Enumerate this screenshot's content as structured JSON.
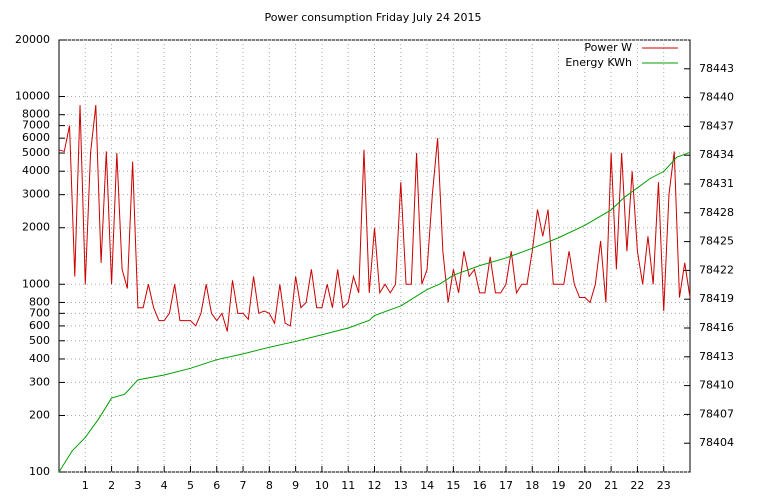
{
  "chart_data": {
    "type": "line",
    "title": "Power consumption Friday July 24 2015",
    "xlim": [
      0,
      24
    ],
    "xticks": [
      1,
      2,
      3,
      4,
      5,
      6,
      7,
      8,
      9,
      10,
      11,
      12,
      13,
      14,
      15,
      16,
      17,
      18,
      19,
      20,
      21,
      22,
      23
    ],
    "ylim": [
      100,
      20000
    ],
    "log_y": true,
    "yticks": [
      100,
      200,
      300,
      400,
      500,
      600,
      700,
      800,
      1000,
      2000,
      3000,
      4000,
      5000,
      6000,
      7000,
      8000,
      10000,
      20000
    ],
    "y2lim": [
      78401,
      78446
    ],
    "y2ticks": [
      78404,
      78407,
      78410,
      78413,
      78416,
      78419,
      78422,
      78425,
      78428,
      78431,
      78434,
      78437,
      78440,
      78443
    ],
    "grid": true,
    "legend": "top-right",
    "series": [
      {
        "name": "Power W",
        "color": "#cc0000",
        "x": [
          0,
          0.2,
          0.4,
          0.6,
          0.8,
          1,
          1.2,
          1.4,
          1.6,
          1.8,
          2,
          2.2,
          2.4,
          2.6,
          2.8,
          3,
          3.2,
          3.4,
          3.6,
          3.8,
          4,
          4.2,
          4.4,
          4.6,
          4.8,
          5,
          5.2,
          5.4,
          5.6,
          5.8,
          6,
          6.2,
          6.4,
          6.6,
          6.8,
          7,
          7.2,
          7.4,
          7.6,
          7.8,
          8,
          8.2,
          8.4,
          8.6,
          8.8,
          9,
          9.2,
          9.4,
          9.6,
          9.8,
          10,
          10.2,
          10.4,
          10.6,
          10.8,
          11,
          11.2,
          11.4,
          11.6,
          11.8,
          12,
          12.2,
          12.4,
          12.6,
          12.8,
          13,
          13.2,
          13.4,
          13.6,
          13.8,
          14,
          14.2,
          14.4,
          14.6,
          14.8,
          15,
          15.2,
          15.4,
          15.6,
          15.8,
          16,
          16.2,
          16.4,
          16.6,
          16.8,
          17,
          17.2,
          17.4,
          17.6,
          17.8,
          18,
          18.2,
          18.4,
          18.6,
          18.8,
          19,
          19.2,
          19.4,
          19.6,
          19.8,
          20,
          20.2,
          20.4,
          20.6,
          20.8,
          21,
          21.2,
          21.4,
          21.6,
          21.8,
          22,
          22.2,
          22.4,
          22.6,
          22.8,
          23,
          23.2,
          23.4,
          23.6,
          23.8,
          24
        ],
        "values": [
          5200,
          5100,
          7000,
          1100,
          9000,
          1000,
          5000,
          9000,
          1300,
          5100,
          1000,
          5000,
          1200,
          950,
          4500,
          750,
          750,
          1000,
          750,
          640,
          640,
          700,
          1000,
          640,
          640,
          640,
          600,
          700,
          1000,
          700,
          640,
          700,
          560,
          1050,
          700,
          700,
          650,
          1100,
          700,
          720,
          700,
          620,
          1000,
          620,
          600,
          1100,
          750,
          800,
          1200,
          750,
          750,
          1000,
          750,
          1200,
          750,
          800,
          1100,
          900,
          5200,
          900,
          2000,
          900,
          1000,
          900,
          1000,
          3500,
          1000,
          1000,
          5000,
          1000,
          1200,
          3000,
          6000,
          1500,
          800,
          1200,
          900,
          1500,
          1100,
          1200,
          900,
          900,
          1400,
          900,
          900,
          1000,
          1500,
          900,
          1000,
          1000,
          1500,
          2500,
          1800,
          2500,
          1000,
          1000,
          1000,
          1500,
          1000,
          850,
          850,
          800,
          1000,
          1700,
          800,
          5000,
          1200,
          5000,
          1500,
          4000,
          1500,
          1000,
          1800,
          1000,
          3500,
          720,
          3000,
          5100,
          850,
          1300,
          850
        ]
      },
      {
        "name": "Energy KWh",
        "color": "#00a000",
        "axis": "y2",
        "x": [
          0,
          0.5,
          1,
          1.5,
          2,
          2.5,
          3,
          4,
          5,
          6,
          7,
          8,
          9,
          10,
          11,
          11.8,
          12,
          13,
          14,
          14.5,
          15,
          16,
          17,
          18,
          19,
          20,
          21,
          21.5,
          22,
          22.5,
          23,
          23.5,
          24
        ],
        "values": [
          78401,
          78403.2,
          78404.6,
          78406.5,
          78408.7,
          78409.1,
          78410.6,
          78411.1,
          78411.8,
          78412.7,
          78413.3,
          78414,
          78414.6,
          78415.3,
          78416,
          78416.8,
          78417.3,
          78418.3,
          78420,
          78420.6,
          78421.5,
          78422.5,
          78423.3,
          78424.3,
          78425.4,
          78426.7,
          78428.3,
          78429.6,
          78430.6,
          78431.6,
          78432.3,
          78433.8,
          78434.3
        ]
      }
    ]
  }
}
